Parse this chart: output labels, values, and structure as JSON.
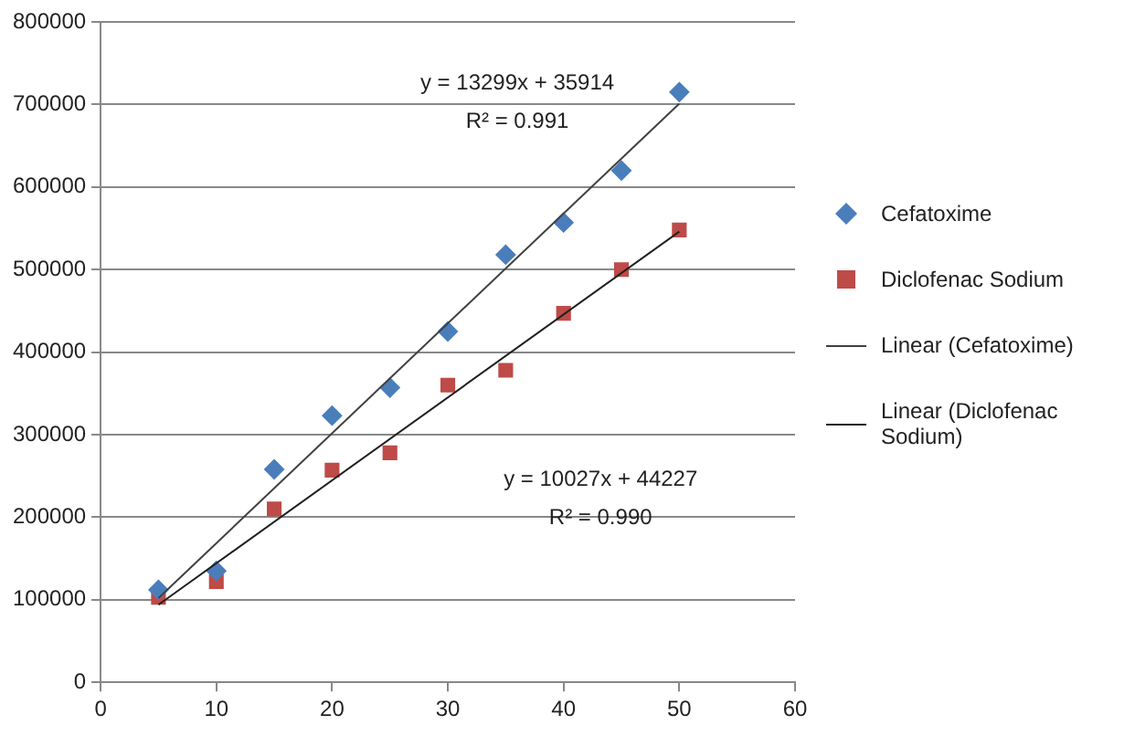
{
  "chart_data": {
    "type": "scatter",
    "xlim": [
      0,
      60
    ],
    "xticks": [
      0,
      10,
      20,
      30,
      40,
      50,
      60
    ],
    "ylim": [
      0,
      800000
    ],
    "yticks": [
      0,
      100000,
      200000,
      300000,
      400000,
      500000,
      600000,
      700000,
      800000
    ],
    "grid": "y",
    "legend": "right",
    "series": [
      {
        "name": "Cefatoxime",
        "type": "scatter",
        "marker": "diamond",
        "color": "#4a7ebb",
        "x": [
          5,
          10,
          15,
          20,
          25,
          30,
          35,
          40,
          45,
          50
        ],
        "values": [
          112000,
          135000,
          258000,
          323000,
          357000,
          425000,
          518000,
          557000,
          620000,
          715000
        ]
      },
      {
        "name": "Diclofenac Sodium",
        "type": "scatter",
        "marker": "square",
        "color": "#be4b48",
        "x": [
          5,
          10,
          15,
          20,
          25,
          30,
          35,
          40,
          45,
          50
        ],
        "values": [
          103000,
          122000,
          210000,
          257000,
          278000,
          360000,
          378000,
          447000,
          500000,
          548000
        ]
      },
      {
        "name": "Linear (Cefatoxime)",
        "type": "line",
        "marker": "none",
        "line_style": "solid",
        "color": "#404040",
        "x": [
          5,
          50
        ],
        "values": [
          102000,
          701000
        ]
      },
      {
        "name": "Linear (Diclofenac Sodium)",
        "type": "line",
        "marker": "none",
        "line_style": "solid",
        "color": "#202020",
        "x": [
          5,
          50
        ],
        "values": [
          94000,
          546000
        ]
      }
    ],
    "annotations": [
      "y = 13299x + 35914",
      "R² = 0.991",
      "y = 10027x + 44227",
      "R² = 0.990"
    ]
  }
}
